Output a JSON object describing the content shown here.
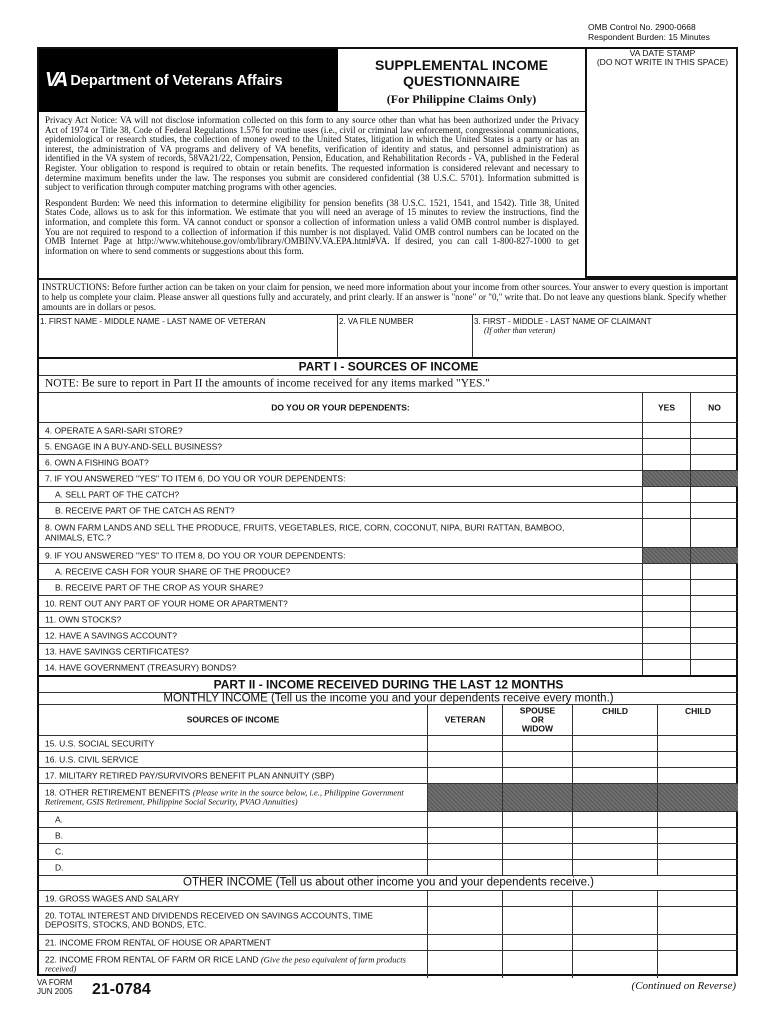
{
  "header": {
    "omb_control": "OMB Control No. 2900-0668",
    "burden": "Respondent Burden: 15 Minutes",
    "agency": "Department of Veterans Affairs",
    "logo_text": "VA",
    "title_line1": "SUPPLEMENTAL INCOME",
    "title_line2": "QUESTIONNAIRE",
    "subtitle": "(For Philippine Claims Only)",
    "stamp_line1": "VA DATE STAMP",
    "stamp_line2": "(DO NOT WRITE IN THIS SPACE)"
  },
  "privacy": "Privacy Act Notice: VA will not disclose information collected on this form to any source other than what has been authorized under the Privacy Act of 1974 or Title 38, Code of Federal Regulations 1.576 for routine uses (i.e., civil or criminal law enforcement, congressional communications, epidemiological or research studies, the collection of money owed to the United States, litigation in which the United States is a party or has an interest, the administration of VA programs and delivery of VA benefits, verification of identity and status, and personnel administration) as identified in the VA system of records, 58VA21/22, Compensation, Pension, Education, and Rehabilitation Records - VA, published in the Federal Register. Your obligation to respond is required to obtain or retain benefits. The requested information is considered relevant and necessary to determine maximum benefits under the law. The responses you submit are considered confidential (38 U.S.C. 5701). Information submitted is subject to verification through computer matching programs with other agencies.",
  "burden": "Respondent Burden: We need this information to determine eligibility for pension benefits (38 U.S.C. 1521, 1541, and 1542). Title 38, United States Code, allows us to ask for this information. We estimate that you will need an average of 15 minutes to review the instructions, find the information, and complete this form. VA cannot conduct or sponsor a collection of information unless a valid OMB control number is displayed. You are not required to respond to a collection of information if this number is not displayed. Valid OMB control numbers can be located on the OMB Internet Page at http://www.whitehouse.gov/omb/library/OMBINV.VA.EPA.html#VA. If desired, you can call 1-800-827-1000 to get information on where to send comments or suggestions about this form.",
  "instructions": "INSTRUCTIONS: Before further action can be taken on your claim for pension, we need more information about your income from other sources. Your answer to every question is important to help us complete your claim. Please answer all questions fully and accurately, and print clearly. If an answer is \"none\" or \"0,\" write that. Do not leave any questions blank. Specify whether amounts are in dollars or pesos.",
  "fields": {
    "veteran_name": "1. FIRST NAME - MIDDLE NAME - LAST NAME OF VETERAN",
    "file_number": "2. VA FILE NUMBER",
    "claimant_name": "3. FIRST - MIDDLE - LAST NAME OF CLAIMANT",
    "claimant_note": "(If other than veteran)"
  },
  "part1": {
    "title": "PART I - SOURCES OF INCOME",
    "note": "NOTE: Be sure to report in Part II the amounts of income received for any items marked \"YES.\"",
    "question": "DO YOU OR YOUR DEPENDENTS:",
    "yes": "YES",
    "no": "NO",
    "items": [
      {
        "label": "4. OPERATE A SARI-SARI STORE?"
      },
      {
        "label": "5. ENGAGE IN A BUY-AND-SELL BUSINESS?"
      },
      {
        "label": "6. OWN A FISHING BOAT?"
      },
      {
        "label": "7. IF YOU ANSWERED \"YES\" TO ITEM 6, DO YOU OR YOUR DEPENDENTS:",
        "shaded": true
      },
      {
        "label": "A. SELL PART OF THE CATCH?",
        "sub": true
      },
      {
        "label": "B. RECEIVE PART OF THE CATCH AS RENT?",
        "sub": true
      },
      {
        "label": "8. OWN FARM LANDS AND SELL THE PRODUCE, FRUITS, VEGETABLES, RICE, CORN, COCONUT, NIPA, BURI RATTAN, BAMBOO, ANIMALS, ETC.?",
        "tall": true
      },
      {
        "label": "9. IF YOU ANSWERED \"YES\" TO ITEM 8, DO YOU OR YOUR DEPENDENTS:",
        "shaded": true
      },
      {
        "label": "A. RECEIVE CASH FOR YOUR SHARE OF THE PRODUCE?",
        "sub": true
      },
      {
        "label": "B. RECEIVE PART OF THE CROP AS YOUR SHARE?",
        "sub": true
      },
      {
        "label": "10. RENT OUT ANY PART OF YOUR HOME OR APARTMENT?"
      },
      {
        "label": "11. OWN STOCKS?"
      },
      {
        "label": "12. HAVE A SAVINGS ACCOUNT?"
      },
      {
        "label": "13. HAVE SAVINGS CERTIFICATES?"
      },
      {
        "label": "14. HAVE GOVERNMENT (TREASURY) BONDS?"
      }
    ]
  },
  "part2": {
    "title": "PART II - INCOME RECEIVED DURING THE LAST 12 MONTHS",
    "monthly": "MONTHLY INCOME (Tell us the income you and your dependents receive every month.)",
    "col_sources": "SOURCES OF INCOME",
    "col_veteran": "VETERAN",
    "col_spouse": "SPOUSE OR WIDOW",
    "col_child1": "CHILD",
    "col_child2": "CHILD",
    "monthly_items": [
      {
        "label": "15. U.S. SOCIAL SECURITY"
      },
      {
        "label": "16. U.S. CIVIL SERVICE"
      },
      {
        "label": "17. MILITARY RETIRED PAY/SURVIVORS BENEFIT PLAN ANNUITY (SBP)"
      },
      {
        "label": "18. OTHER RETIREMENT BENEFITS",
        "note": "(Please write in the source below, i.e., Philippine Government Retirement, GSIS Retirement, Philippine Social Security, PVAO Annuities)",
        "shaded": true,
        "tall": true
      },
      {
        "label": "A.",
        "sub": true
      },
      {
        "label": "B.",
        "sub": true
      },
      {
        "label": "C.",
        "sub": true
      },
      {
        "label": "D.",
        "sub": true
      }
    ],
    "other": "OTHER INCOME (Tell us about other income you and your dependents receive.)",
    "other_items": [
      {
        "label": "19. GROSS WAGES AND SALARY"
      },
      {
        "label": "20. TOTAL INTEREST AND DIVIDENDS RECEIVED ON SAVINGS ACCOUNTS, TIME DEPOSITS, STOCKS, AND BONDS, ETC.",
        "tall": true
      },
      {
        "label": "21. INCOME FROM RENTAL OF HOUSE OR APARTMENT"
      },
      {
        "label": "22. INCOME FROM RENTAL OF FARM OR RICE LAND",
        "note": "(Give the peso equivalent of farm products received)",
        "tall": true
      }
    ]
  },
  "footer": {
    "va_form": "VA FORM",
    "date": "JUN 2005",
    "form_number": "21-0784",
    "continued": "(Continued on Reverse)"
  }
}
